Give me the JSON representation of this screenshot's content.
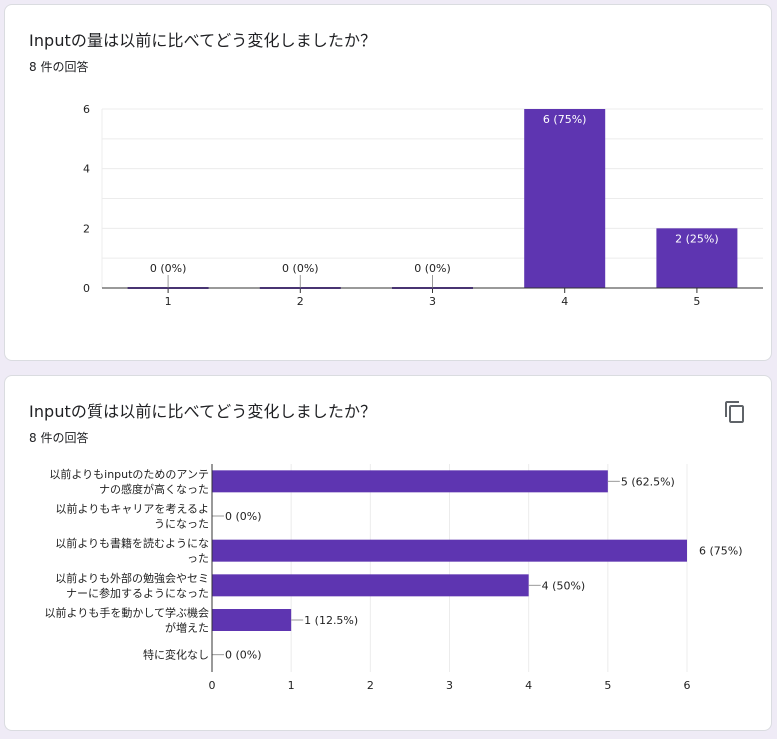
{
  "colors": {
    "bar": "#5e35b1",
    "grid": "#ececec",
    "axis": "#333333",
    "text": "#222222",
    "bar_label": "#ffffff"
  },
  "questions": [
    {
      "title": "Inputの量は以前に比べてどう変化しましたか？",
      "response_count": "8 件の回答"
    },
    {
      "title": "Inputの質は以前に比べてどう変化しましたか？",
      "response_count": "8 件の回答",
      "copy_icon": "copy-icon"
    }
  ],
  "chart_data": [
    {
      "type": "bar",
      "orientation": "vertical",
      "categories": [
        "1",
        "2",
        "3",
        "4",
        "5"
      ],
      "values": [
        0,
        0,
        0,
        6,
        2
      ],
      "data_labels": [
        "0 (0%)",
        "0 (0%)",
        "0 (0%)",
        "6 (75%)",
        "2 (25%)"
      ],
      "ylim": [
        0,
        6
      ],
      "yticks": [
        "0",
        "2",
        "4",
        "6"
      ],
      "grid": true
    },
    {
      "type": "bar",
      "orientation": "horizontal",
      "categories": [
        [
          "以前よりもinputのためのアンテ",
          "ナの感度が高くなった"
        ],
        [
          "以前よりもキャリアを考えるよ",
          "うになった"
        ],
        [
          "以前よりも書籍を読むようにな",
          "った"
        ],
        [
          "以前よりも外部の勉強会やセミ",
          "ナーに参加するようになった"
        ],
        [
          "以前よりも手を動かして学ぶ機会",
          "が増えた"
        ],
        [
          "特に変化なし"
        ]
      ],
      "values": [
        5,
        0,
        6,
        4,
        1,
        0
      ],
      "data_labels": [
        "5 (62.5%)",
        "0 (0%)",
        "6 (75%)",
        "4 (50%)",
        "1 (12.5%)",
        "0 (0%)"
      ],
      "xlim": [
        0,
        6
      ],
      "xticks": [
        "0",
        "1",
        "2",
        "3",
        "4",
        "5",
        "6"
      ],
      "grid": true
    }
  ]
}
